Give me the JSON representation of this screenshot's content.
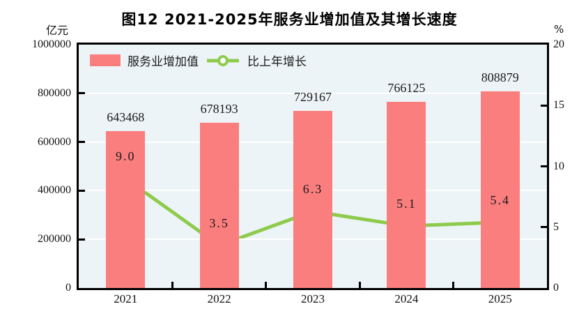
{
  "title": "图12  2021-2025年服务业增加值及其增长速度",
  "left_axis": {
    "unit": "亿元",
    "ticks": [
      "1000000",
      "800000",
      "600000",
      "400000",
      "200000",
      "0"
    ]
  },
  "right_axis": {
    "unit": "%",
    "ticks": [
      "20",
      "15",
      "10",
      "5",
      "0"
    ]
  },
  "legend": {
    "items": [
      {
        "label": "服务业增加值",
        "marker": "bar-swatch"
      },
      {
        "label": "比上年增长",
        "marker": "line-marker"
      }
    ],
    "position": "top-left-inside"
  },
  "colors": {
    "bar": "#fb7e7e",
    "line": "#8ecb4d",
    "marker_fill": "#ffffff",
    "plot_background": "#edf4f7",
    "gridline": "#ffffff",
    "frame": "#000000",
    "text": "#1a1a1a"
  },
  "chart_data": {
    "type": "bar",
    "subtype": "combo-bar-line-dual-axis",
    "title": "图12 2021-2025年服务业增加值及其增长速度",
    "categories": [
      "2021",
      "2022",
      "2023",
      "2024",
      "2025"
    ],
    "series": [
      {
        "name": "服务业增加值",
        "type": "bar",
        "yaxis": "left",
        "unit": "亿元",
        "values": [
          643468,
          678193,
          729167,
          766125,
          808879
        ],
        "labels": [
          "643468",
          "678193",
          "729167",
          "766125",
          "808879"
        ]
      },
      {
        "name": "比上年增长",
        "type": "line",
        "yaxis": "right",
        "unit": "%",
        "values": [
          9.0,
          3.5,
          6.3,
          5.1,
          5.4
        ],
        "labels": [
          "9.0",
          "3.5",
          "6.3",
          "5.1",
          "5.4"
        ]
      }
    ],
    "left_ylim": [
      0,
      1000000
    ],
    "left_tick_step": 200000,
    "right_ylim": [
      0,
      20
    ],
    "right_tick_step": 5,
    "grid": "horizontal",
    "legend_position": "top-left-inside"
  }
}
